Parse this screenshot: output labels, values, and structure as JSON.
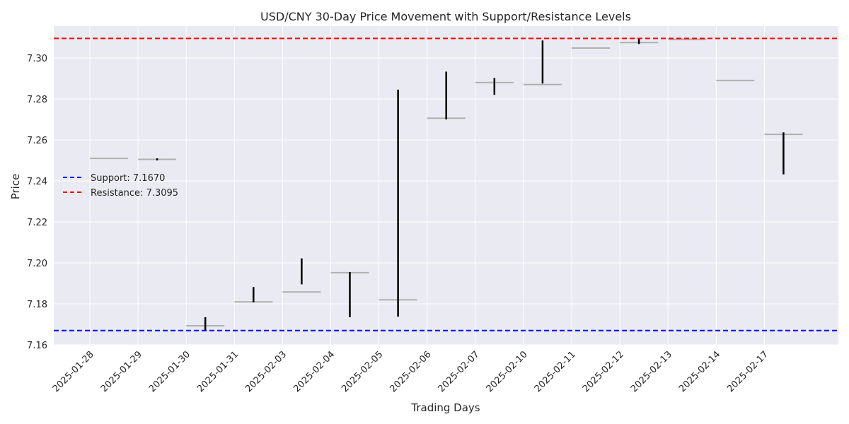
{
  "chart_data": {
    "type": "candlestick",
    "title": "USD/CNY 30-Day Price Movement with Support/Resistance Levels",
    "xlabel": "Trading Days",
    "ylabel": "Price",
    "ylim": [
      7.16,
      7.3155
    ],
    "yticks": [
      7.16,
      7.18,
      7.2,
      7.22,
      7.24,
      7.26,
      7.28,
      7.3
    ],
    "ytick_labels": [
      "7.16",
      "7.18",
      "7.20",
      "7.22",
      "7.24",
      "7.26",
      "7.28",
      "7.30"
    ],
    "grid": true,
    "legend_placement": "center-left",
    "categories": [
      "2025-01-28",
      "2025-01-29",
      "2025-01-30",
      "2025-01-31",
      "2025-02-03",
      "2025-02-04",
      "2025-02-05",
      "2025-02-06",
      "2025-02-07",
      "2025-02-10",
      "2025-02-11",
      "2025-02-12",
      "2025-02-13",
      "2025-02-14",
      "2025-02-17"
    ],
    "candles": [
      {
        "date": "2025-01-28",
        "level": 7.251,
        "high": null,
        "low": null
      },
      {
        "date": "2025-01-29",
        "level": 7.2505,
        "high": 7.251,
        "low": 7.25
      },
      {
        "date": "2025-01-30",
        "level": 7.1693,
        "high": 7.1735,
        "low": 7.167
      },
      {
        "date": "2025-01-31",
        "level": 7.181,
        "high": 7.1882,
        "low": 7.1808
      },
      {
        "date": "2025-02-03",
        "level": 7.1858,
        "high": 7.2022,
        "low": 7.1895
      },
      {
        "date": "2025-02-04",
        "level": 7.1952,
        "high": 7.1955,
        "low": 7.1735
      },
      {
        "date": "2025-02-05",
        "level": 7.182,
        "high": 7.2845,
        "low": 7.1738
      },
      {
        "date": "2025-02-06",
        "level": 7.2706,
        "high": 7.2933,
        "low": 7.27
      },
      {
        "date": "2025-02-07",
        "level": 7.288,
        "high": 7.2902,
        "low": 7.282
      },
      {
        "date": "2025-02-10",
        "level": 7.287,
        "high": 7.3085,
        "low": 7.2875
      },
      {
        "date": "2025-02-11",
        "level": 7.3048,
        "high": null,
        "low": null
      },
      {
        "date": "2025-02-12",
        "level": 7.3075,
        "high": 7.3095,
        "low": 7.3068
      },
      {
        "date": "2025-02-13",
        "level": 7.309,
        "high": null,
        "low": null
      },
      {
        "date": "2025-02-14",
        "level": 7.289,
        "high": null,
        "low": null
      },
      {
        "date": "2025-02-17",
        "level": 7.2627,
        "high": 7.2637,
        "low": 7.2432
      }
    ],
    "support": {
      "label": "Support: 7.1670",
      "value": 7.167,
      "color": "#0000ff"
    },
    "resistance": {
      "label": "Resistance: 7.3095",
      "value": 7.3095,
      "color": "#ff0000"
    },
    "colors": {
      "plot_background": "#eaeaf2",
      "grid": "#ffffff",
      "level_line": "#b0b0b0",
      "wick": "#000000"
    }
  }
}
